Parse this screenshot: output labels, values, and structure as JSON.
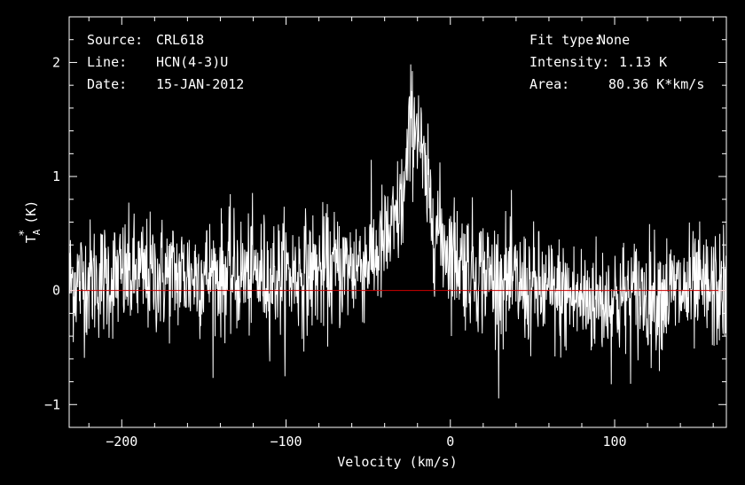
{
  "chart_data": {
    "type": "line",
    "title": "",
    "xlabel": "Velocity (km/s)",
    "ylabel_main": "T",
    "ylabel_sub": "A",
    "ylabel_sup": "*",
    "ylabel_unit": "(K)",
    "xlim": [
      -232,
      168
    ],
    "ylim": [
      -1.2,
      2.4
    ],
    "x_ticks": [
      -200,
      -100,
      0,
      100
    ],
    "x_tick_labels": [
      "−200",
      "−100",
      "0",
      "100"
    ],
    "y_ticks": [
      -1,
      0,
      1,
      2
    ],
    "y_tick_labels": [
      "−1",
      "0",
      "1",
      "2"
    ],
    "grid": false,
    "zero_line_color": "#d00000",
    "trace_color": "#ffffff",
    "series": [
      {
        "name": "",
        "x": [
          -232,
          -200,
          -150,
          -100,
          -60,
          -45,
          -35,
          -28,
          -24,
          -20,
          -17,
          -14,
          -10,
          -5,
          0,
          10,
          25,
          50,
          80,
          100,
          130,
          168
        ],
        "y": [
          0.08,
          0.12,
          0.14,
          0.13,
          0.2,
          0.32,
          0.5,
          0.85,
          1.45,
          1.5,
          1.1,
          0.85,
          0.62,
          0.45,
          0.35,
          0.22,
          0.12,
          0.0,
          -0.08,
          -0.08,
          -0.02,
          0.0
        ],
        "noise_sigma": 0.26
      }
    ]
  },
  "info": {
    "source_label": "Source:",
    "source_value": "CRL618",
    "line_label": "Line:",
    "line_value": "HCN(4-3)U",
    "date_label": "Date:",
    "date_value": "15-JAN-2012",
    "fit_label": "Fit type:",
    "fit_value": "None",
    "intensity_label": "Intensity:",
    "intensity_value": "1.13 K",
    "area_label": "Area:",
    "area_value": "80.36 K*km/s"
  }
}
